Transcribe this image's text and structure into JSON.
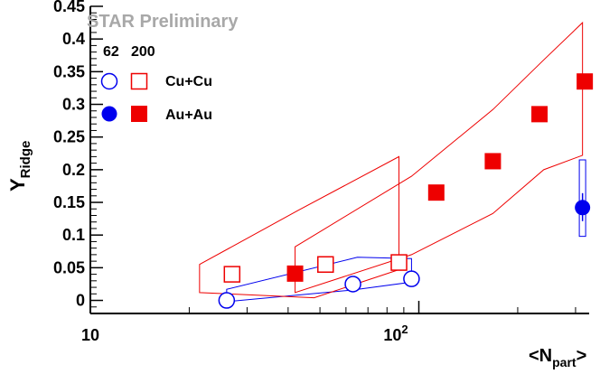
{
  "chart_data": {
    "type": "scatter",
    "annotation": "STAR Preliminary",
    "ylabel": "Y",
    "ylabel_sub": "Ridge",
    "xlabel": "<N",
    "xlabel_sub": "part",
    "xlabel_end": ">",
    "xscale": "log",
    "xlim": [
      10,
      330
    ],
    "ylim": [
      -0.02,
      0.45
    ],
    "grid": false,
    "yticks": [
      "0",
      "0.05",
      "0.1",
      "0.15",
      "0.2",
      "0.25",
      "0.3",
      "0.35",
      "0.4",
      "0.45"
    ],
    "ytick_values": [
      0,
      0.05,
      0.1,
      0.15,
      0.2,
      0.25,
      0.3,
      0.35,
      0.4,
      0.45
    ],
    "xtick_base": "10",
    "xtick_exp": "2",
    "xtick_first": "10",
    "legend": {
      "energy_labels": [
        "62",
        "200"
      ],
      "rows": [
        "Cu+Cu",
        "Au+Au"
      ]
    },
    "series": [
      {
        "name": "Cu+Cu",
        "energy": "62",
        "marker": "open-circle",
        "color": "#0000ee",
        "x": [
          26,
          63,
          95
        ],
        "y": [
          0.0,
          0.025,
          0.033
        ],
        "sys_band": {
          "upper": [
            [
              26,
              0.017
            ],
            [
              65,
              0.066
            ],
            [
              95,
              0.064
            ]
          ],
          "lower": [
            [
              26,
              -0.002
            ],
            [
              63,
              0.016
            ],
            [
              95,
              0.028
            ]
          ]
        }
      },
      {
        "name": "Cu+Cu",
        "energy": "200",
        "marker": "open-square",
        "color": "#ee0000",
        "x": [
          27,
          52,
          87
        ],
        "y": [
          0.04,
          0.055,
          0.058
        ],
        "sys_band": {
          "upper": [
            [
              21.5,
              0.055
            ],
            [
              43,
              0.138
            ],
            [
              87,
              0.22
            ]
          ],
          "lower": [
            [
              21.5,
              0.012
            ],
            [
              48,
              0.004
            ],
            [
              87,
              0.047
            ]
          ]
        }
      },
      {
        "name": "Au+Au",
        "energy": "62",
        "marker": "filled-circle",
        "color": "#0000ee",
        "x": [
          315
        ],
        "y": [
          0.142
        ],
        "sys_box": [
          [
            308,
            0.098
          ],
          [
            322,
            0.215
          ]
        ]
      },
      {
        "name": "Au+Au",
        "energy": "200",
        "marker": "filled-square",
        "color": "#ee0000",
        "x": [
          42,
          113,
          168,
          233,
          320
        ],
        "y": [
          0.041,
          0.165,
          0.213,
          0.285,
          0.335
        ],
        "sys_band": {
          "upper": [
            [
              42,
              0.082
            ],
            [
              95,
              0.19
            ],
            [
              168,
              0.292
            ],
            [
              240,
              0.368
            ],
            [
              315,
              0.425
            ]
          ],
          "lower": [
            [
              42,
              0.012
            ],
            [
              95,
              0.07
            ],
            [
              168,
              0.133
            ],
            [
              240,
              0.2
            ],
            [
              315,
              0.222
            ]
          ]
        }
      }
    ]
  }
}
